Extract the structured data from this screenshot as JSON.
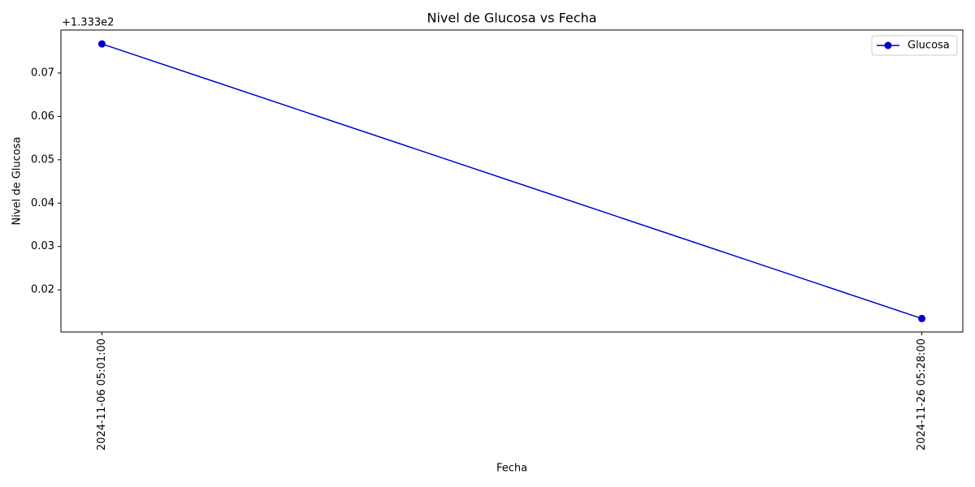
{
  "chart_data": {
    "type": "line",
    "title": "Nivel de Glucosa vs Fecha",
    "x_label": "Fecha",
    "y_label": "Nivel de Glucosa",
    "y_offset_text": "+1.333e2",
    "categories": [
      "2024-11-06 05:01:00",
      "2024-11-26 05:28:00"
    ],
    "series": [
      {
        "name": "Glucosa",
        "color": "#0000cc",
        "values": [
          0.0767,
          0.0134
        ]
      }
    ],
    "ylim": [
      0.0103,
      0.0799
    ],
    "yticks": [
      0.02,
      0.03,
      0.04,
      0.05,
      0.06,
      0.07
    ],
    "grid": false,
    "legend": "upper right"
  }
}
